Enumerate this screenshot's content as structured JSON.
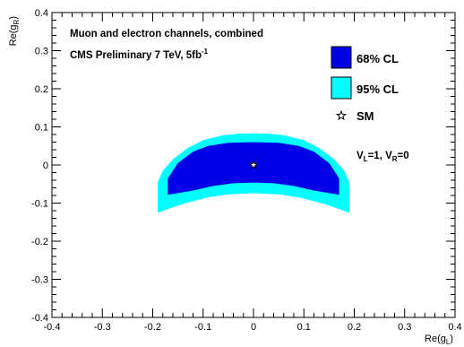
{
  "chart_data": {
    "type": "contour",
    "x_axis": {
      "label": "Re(g",
      "label_sub": "L",
      "label_tail": ")",
      "range": [
        -0.4,
        0.4
      ],
      "ticks": [
        "-0.4",
        "-0.3",
        "-0.2",
        "-0.1",
        "0",
        "0.1",
        "0.2",
        "0.3",
        "0.4"
      ]
    },
    "y_axis": {
      "label": "Re(g",
      "label_sub": "R",
      "label_tail": ")",
      "range": [
        -0.4,
        0.4
      ],
      "ticks": [
        "-0.4",
        "-0.3",
        "-0.2",
        "-0.1",
        "0",
        "0.1",
        "0.2",
        "0.3",
        "0.4"
      ]
    },
    "annotations": {
      "line1": "Muon and electron channels, combined",
      "line2": "CMS Preliminary 7 TeV, 5fb",
      "line2_sup": "-1",
      "couplings": {
        "vl": "V",
        "vl_sub": "L",
        "vl_val": "=1, V",
        "vr_sub": "R",
        "vr_val": "=0"
      }
    },
    "legend": [
      {
        "label": "68% CL",
        "color": "#0000e6"
      },
      {
        "label": "95% CL",
        "color": "#00ffff"
      },
      {
        "label": "SM",
        "symbol": "star"
      }
    ],
    "regions": {
      "cl95": {
        "color": "#00ffff",
        "outer_x": [
          -0.19,
          -0.18,
          -0.16,
          -0.13,
          -0.1,
          -0.06,
          -0.03,
          0.0,
          0.03,
          0.06,
          0.1,
          0.13,
          0.16,
          0.18,
          0.19
        ],
        "outer_y": [
          -0.045,
          -0.015,
          0.015,
          0.045,
          0.065,
          0.078,
          0.082,
          0.083,
          0.082,
          0.078,
          0.065,
          0.045,
          0.015,
          -0.015,
          -0.045
        ],
        "inner_x": [
          -0.19,
          -0.14,
          -0.09,
          -0.05,
          0.0,
          0.05,
          0.09,
          0.14,
          0.19
        ],
        "inner_y": [
          -0.125,
          -0.102,
          -0.085,
          -0.077,
          -0.074,
          -0.077,
          -0.085,
          -0.102,
          -0.125
        ]
      },
      "cl68": {
        "color": "#0000e6",
        "outer_x": [
          -0.17,
          -0.15,
          -0.12,
          -0.09,
          -0.05,
          0.0,
          0.05,
          0.09,
          0.12,
          0.15,
          0.17
        ],
        "outer_y": [
          -0.035,
          0.005,
          0.035,
          0.05,
          0.058,
          0.06,
          0.058,
          0.05,
          0.035,
          0.005,
          -0.035
        ],
        "inner_x": [
          -0.17,
          -0.12,
          -0.08,
          -0.04,
          0.0,
          0.04,
          0.08,
          0.12,
          0.17
        ],
        "inner_y": [
          -0.078,
          -0.067,
          -0.055,
          -0.048,
          -0.046,
          -0.048,
          -0.055,
          -0.067,
          -0.078
        ]
      }
    },
    "sm_point": {
      "x": 0.0,
      "y": 0.0
    },
    "grid": false
  }
}
